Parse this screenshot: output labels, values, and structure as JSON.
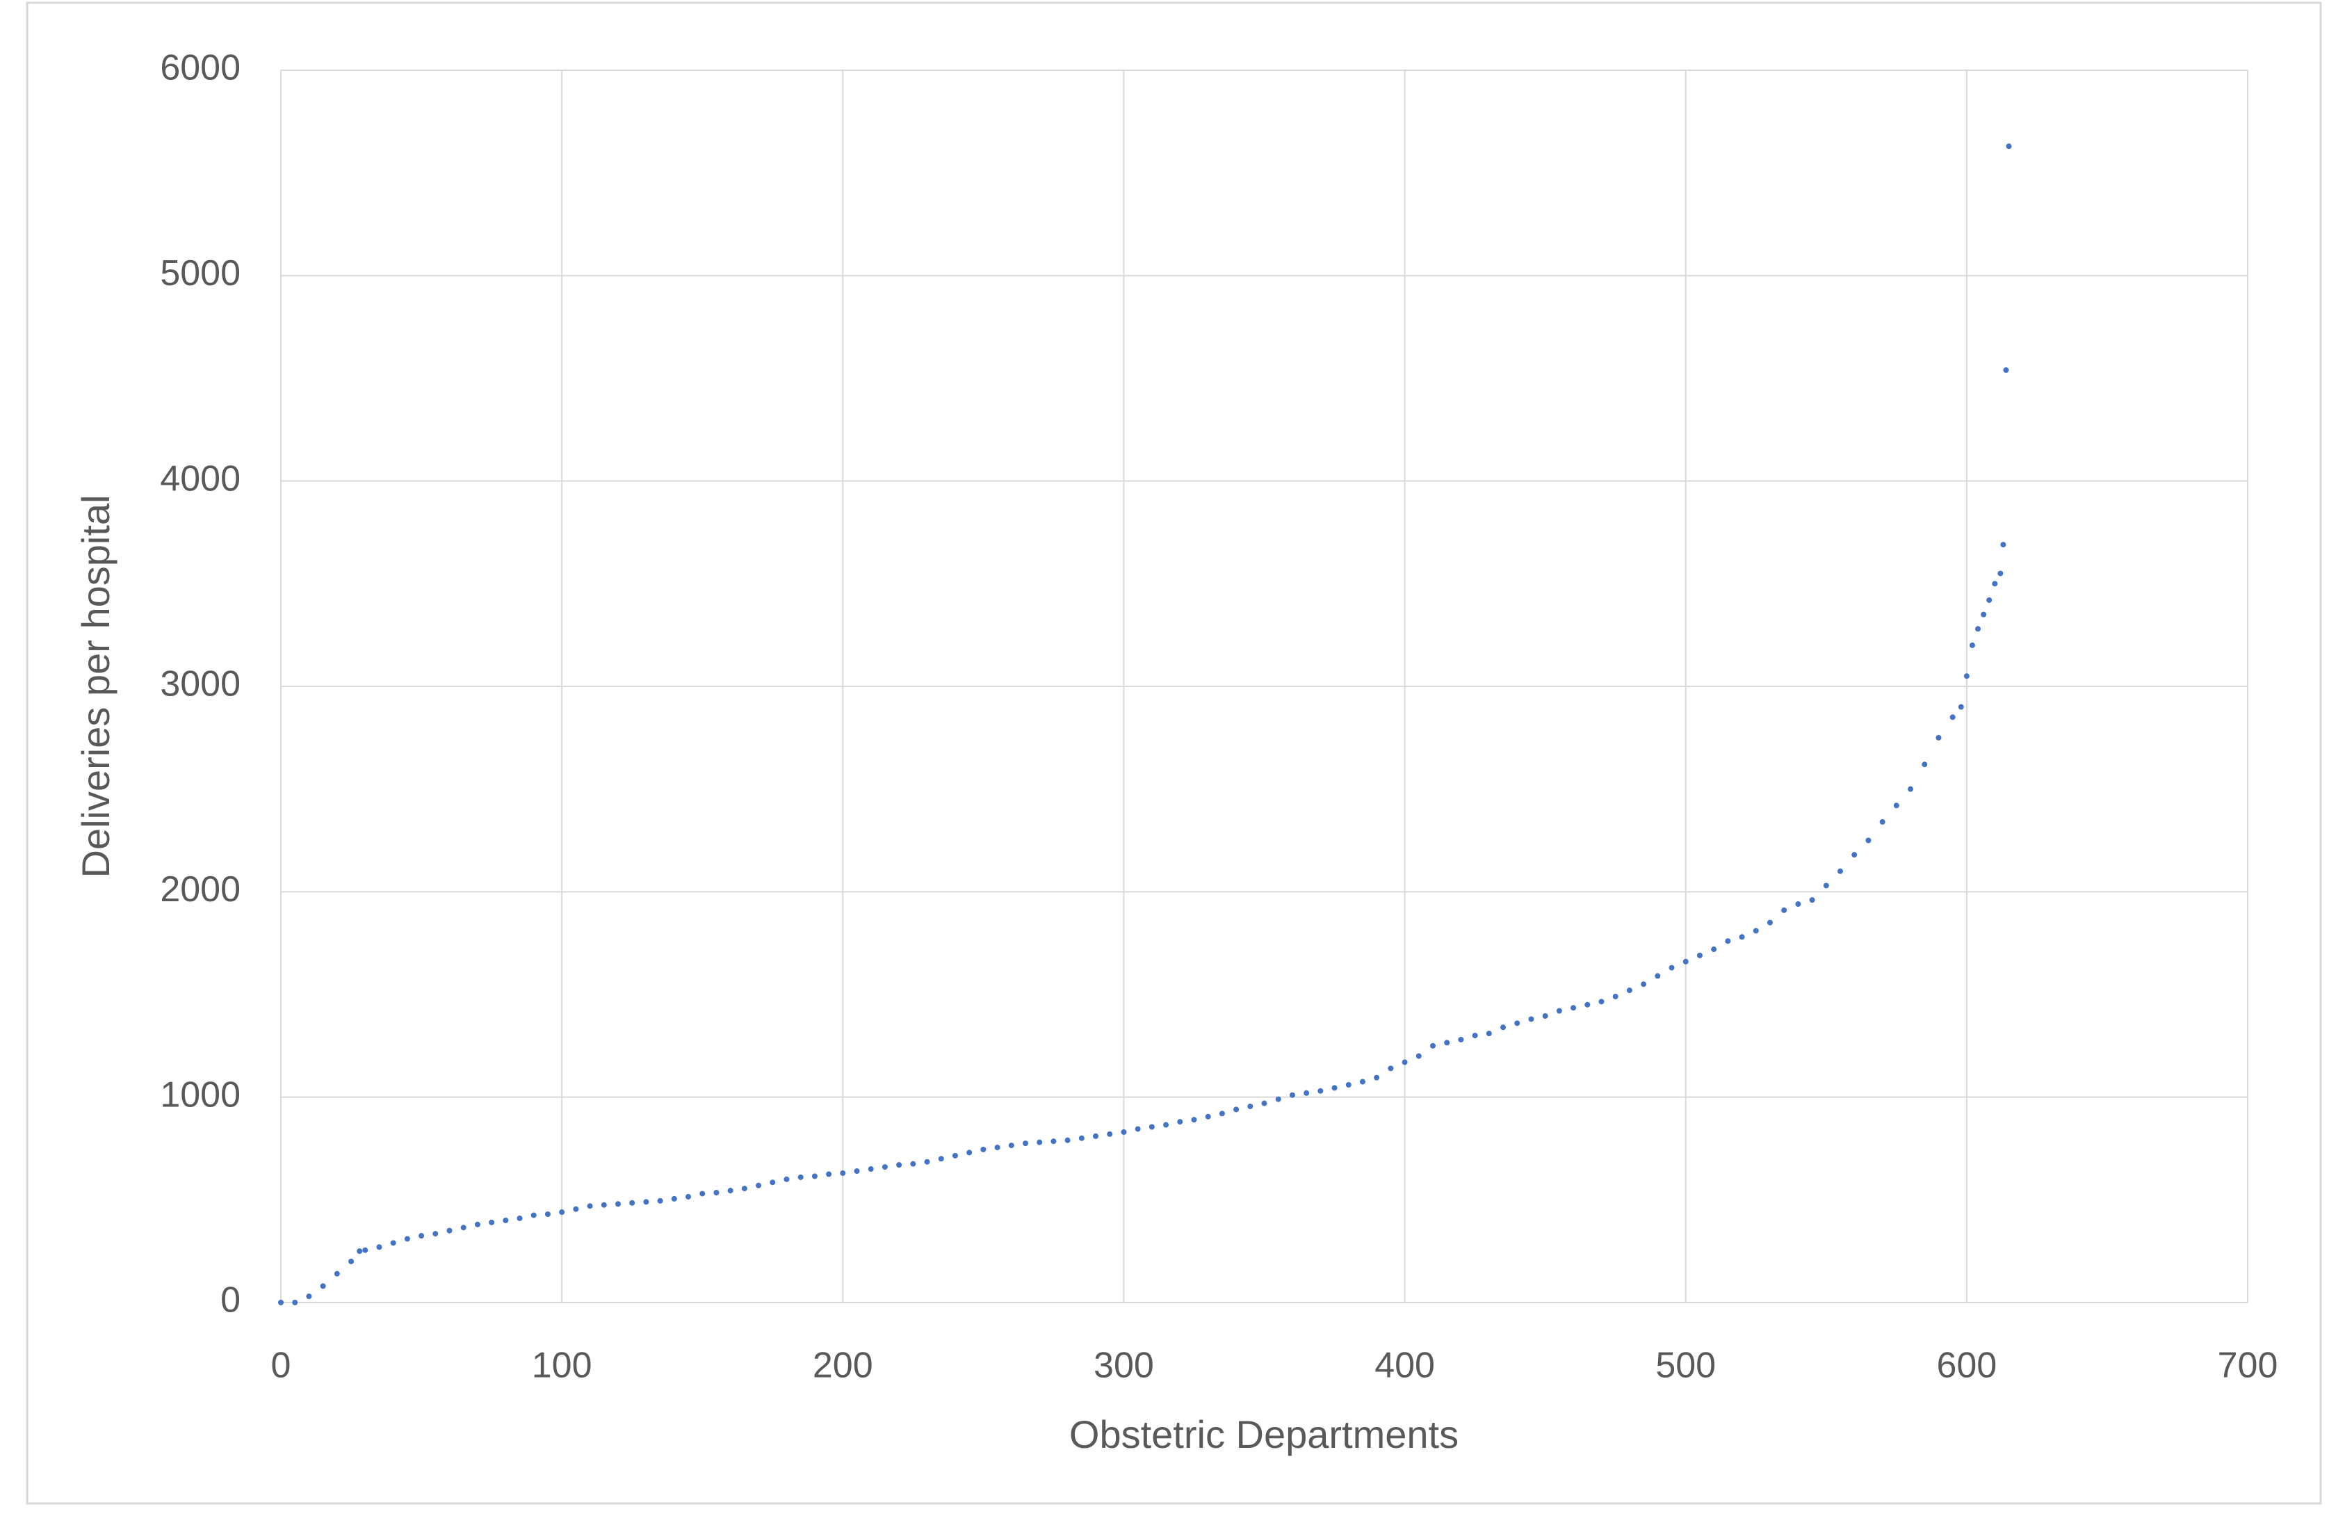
{
  "chart_data": {
    "type": "scatter",
    "x_label": "Obstetric Departments",
    "y_label": "Deliveries per hospital",
    "xlim": [
      0,
      700
    ],
    "xticks": [
      0,
      100,
      200,
      300,
      400,
      500,
      600,
      700
    ],
    "ylim": [
      0,
      6000
    ],
    "yticks": [
      0,
      1000,
      2000,
      3000,
      4000,
      5000,
      6000
    ],
    "grid": true,
    "series": [
      {
        "color": "#4472c4",
        "x": [
          0,
          5,
          10,
          15,
          20,
          25,
          28,
          30,
          35,
          40,
          45,
          50,
          55,
          60,
          65,
          70,
          75,
          80,
          85,
          90,
          95,
          100,
          105,
          110,
          115,
          120,
          125,
          130,
          135,
          140,
          145,
          150,
          155,
          160,
          165,
          170,
          175,
          180,
          185,
          190,
          195,
          200,
          205,
          210,
          215,
          220,
          225,
          230,
          235,
          240,
          245,
          250,
          255,
          260,
          265,
          270,
          275,
          280,
          285,
          290,
          295,
          300,
          305,
          310,
          315,
          320,
          325,
          330,
          335,
          340,
          345,
          350,
          355,
          360,
          365,
          370,
          375,
          380,
          385,
          390,
          395,
          400,
          405,
          410,
          415,
          420,
          425,
          430,
          435,
          440,
          445,
          450,
          455,
          460,
          465,
          470,
          475,
          480,
          485,
          490,
          495,
          500,
          505,
          510,
          515,
          520,
          525,
          530,
          535,
          540,
          545,
          550,
          555,
          560,
          565,
          570,
          575,
          580,
          585,
          590,
          595,
          598,
          600,
          602,
          604,
          606,
          608,
          610,
          612,
          613,
          614,
          615
        ],
        "values": [
          0,
          0,
          30,
          80,
          140,
          200,
          250,
          255,
          270,
          290,
          310,
          325,
          335,
          350,
          365,
          380,
          390,
          400,
          410,
          425,
          430,
          440,
          455,
          470,
          475,
          480,
          485,
          490,
          495,
          505,
          515,
          530,
          535,
          545,
          555,
          570,
          585,
          600,
          610,
          615,
          625,
          630,
          640,
          650,
          660,
          670,
          675,
          685,
          700,
          715,
          730,
          745,
          755,
          765,
          775,
          780,
          785,
          790,
          800,
          810,
          820,
          830,
          845,
          855,
          865,
          880,
          890,
          905,
          920,
          940,
          955,
          970,
          990,
          1010,
          1020,
          1030,
          1045,
          1060,
          1075,
          1095,
          1140,
          1170,
          1200,
          1250,
          1265,
          1280,
          1300,
          1310,
          1340,
          1360,
          1380,
          1395,
          1420,
          1435,
          1450,
          1465,
          1490,
          1520,
          1550,
          1590,
          1630,
          1660,
          1690,
          1720,
          1760,
          1780,
          1810,
          1850,
          1910,
          1940,
          1960,
          2030,
          2100,
          2180,
          2250,
          2340,
          2420,
          2500,
          2620,
          2750,
          2850,
          2900,
          3050,
          3200,
          3280,
          3350,
          3420,
          3500,
          3550,
          3690,
          4540,
          5630
        ]
      }
    ]
  }
}
